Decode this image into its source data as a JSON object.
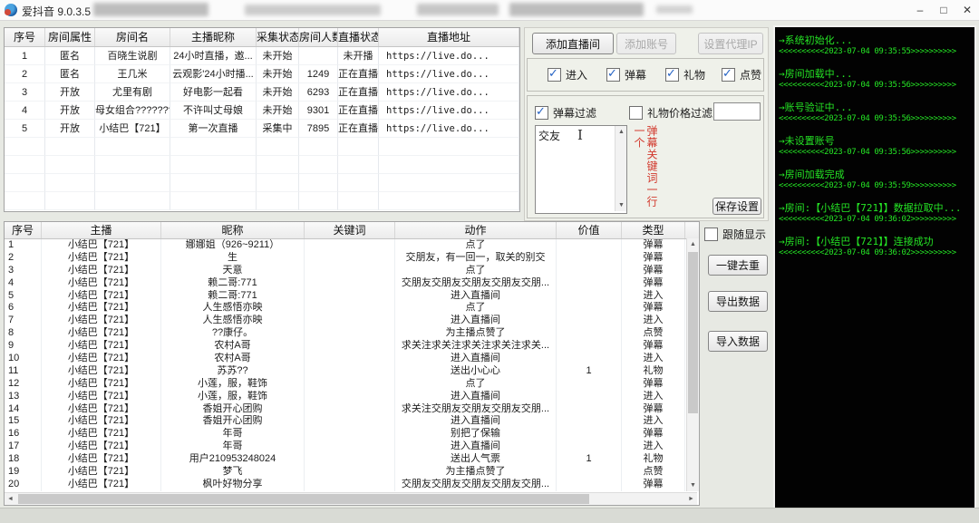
{
  "window": {
    "title": "爱抖音 9.0.3.5",
    "minimize": "–",
    "maximize": "□",
    "close": "✕"
  },
  "rooms_table": {
    "headers": [
      "序号",
      "房间属性",
      "房间名",
      "主播昵称",
      "采集状态",
      "房间人数",
      "直播状态",
      "直播地址"
    ],
    "rows": [
      [
        "1",
        "匿名",
        "百晓生说剧",
        "24小时直播，邀...",
        "未开始",
        "",
        "未开播",
        "https://live.do..."
      ],
      [
        "2",
        "匿名",
        "王几米",
        "云观影'24小时播...",
        "未开始",
        "1249",
        "正在直播",
        "https://live.do..."
      ],
      [
        "3",
        "开放",
        "尤里有剧",
        "好电影一起看",
        "未开始",
        "6293",
        "正在直播",
        "https://live.do..."
      ],
      [
        "4",
        "开放",
        "母女组合???????...",
        "不许叫丈母娘",
        "未开始",
        "9301",
        "正在直播",
        "https://live.do..."
      ],
      [
        "5",
        "开放",
        "小结巴【721】",
        "第一次直播",
        "采集中",
        "7895",
        "正在直播",
        "https://live.do..."
      ]
    ]
  },
  "controls": {
    "add_room_label": "添加直播间",
    "add_account_label": "添加账号",
    "set_proxy_label": "设置代理IP",
    "capture_options": [
      {
        "label": "进入",
        "checked": true
      },
      {
        "label": "弹幕",
        "checked": true
      },
      {
        "label": "礼物",
        "checked": true
      },
      {
        "label": "点赞",
        "checked": true
      }
    ],
    "danmaku_filter_label": "弹幕过滤",
    "danmaku_filter_checked": true,
    "gift_price_filter_label": "礼物价格过滤",
    "gift_price_filter_checked": false,
    "gift_price_value": "",
    "keywords_text": "交友",
    "keywords_hint": "弹幕关键词一行一个",
    "save_label": "保存设置"
  },
  "events_table": {
    "headers": [
      "序号",
      "主播",
      "昵称",
      "关键词",
      "动作",
      "价值",
      "类型"
    ],
    "rows": [
      [
        "1",
        "小结巴【721】",
        "娜娜姐（926~9211）",
        "",
        "点了",
        "",
        "弹幕"
      ],
      [
        "2",
        "小结巴【721】",
        "生",
        "",
        "交朋友，有一回一，取关的别交",
        "",
        "弹幕"
      ],
      [
        "3",
        "小结巴【721】",
        "天意",
        "",
        "点了",
        "",
        "弹幕"
      ],
      [
        "4",
        "小结巴【721】",
        "赖二哥:771",
        "",
        "交朋友交朋友交朋友交朋友交朋...",
        "",
        "弹幕"
      ],
      [
        "5",
        "小结巴【721】",
        "赖二哥:771",
        "",
        "进入直播间",
        "",
        "进入"
      ],
      [
        "6",
        "小结巴【721】",
        "人生感悟亦映",
        "",
        "点了",
        "",
        "弹幕"
      ],
      [
        "7",
        "小结巴【721】",
        "人生感悟亦映",
        "",
        "进入直播间",
        "",
        "进入"
      ],
      [
        "8",
        "小结巴【721】",
        "??康仔。",
        "",
        "为主播点赞了",
        "",
        "点赞"
      ],
      [
        "9",
        "小结巴【721】",
        "农村A哥",
        "",
        "求关注求关注求关注求关注求关...",
        "",
        "弹幕"
      ],
      [
        "10",
        "小结巴【721】",
        "农村A哥",
        "",
        "进入直播间",
        "",
        "进入"
      ],
      [
        "11",
        "小结巴【721】",
        "苏苏??",
        "",
        "送出小心心",
        "1",
        "礼物"
      ],
      [
        "12",
        "小结巴【721】",
        "小莲，服，鞋饰",
        "",
        "点了",
        "",
        "弹幕"
      ],
      [
        "13",
        "小结巴【721】",
        "小莲，服，鞋饰",
        "",
        "进入直播间",
        "",
        "进入"
      ],
      [
        "14",
        "小结巴【721】",
        "香姐开心团购",
        "",
        "求关注交朋友交朋友交朋友交朋...",
        "",
        "弹幕"
      ],
      [
        "15",
        "小结巴【721】",
        "香姐开心团购",
        "",
        "进入直播间",
        "",
        "进入"
      ],
      [
        "16",
        "小结巴【721】",
        "年哥",
        "",
        "别把了保输",
        "",
        "弹幕"
      ],
      [
        "17",
        "小结巴【721】",
        "年哥",
        "",
        "进入直播间",
        "",
        "进入"
      ],
      [
        "18",
        "小结巴【721】",
        "用户210953248024",
        "",
        "送出人气票",
        "1",
        "礼物"
      ],
      [
        "19",
        "小结巴【721】",
        "梦飞",
        "",
        "为主播点赞了",
        "",
        "点赞"
      ],
      [
        "20",
        "小结巴【721】",
        "枫叶好物分享",
        "",
        "交朋友交朋友交朋友交朋友交朋...",
        "",
        "弹幕"
      ]
    ]
  },
  "side_panel": {
    "follow_label": "跟随显示",
    "follow_checked": false,
    "dedupe_label": "一键去重",
    "export_label": "导出数据",
    "import_label": "导入数据"
  },
  "console": {
    "lines": [
      {
        "msg": "→系统初始化...",
        "time": "<<<<<<<<<<2023-07-04 09:35:55>>>>>>>>>>"
      },
      {
        "msg": "→房间加载中...",
        "time": "<<<<<<<<<<2023-07-04 09:35:56>>>>>>>>>>"
      },
      {
        "msg": "→账号验证中...",
        "time": "<<<<<<<<<<2023-07-04 09:35:56>>>>>>>>>>"
      },
      {
        "msg": "→未设置账号",
        "time": "<<<<<<<<<<2023-07-04 09:35:56>>>>>>>>>>"
      },
      {
        "msg": "→房间加载完成",
        "time": "<<<<<<<<<<2023-07-04 09:35:59>>>>>>>>>>"
      },
      {
        "msg": "→房间:【小结巴【721】】数据拉取中...",
        "time": "<<<<<<<<<<2023-07-04 09:36:02>>>>>>>>>>"
      },
      {
        "msg": "→房间:【小结巴【721】】连接成功",
        "time": "<<<<<<<<<<2023-07-04 09:36:02>>>>>>>>>>"
      }
    ]
  },
  "colors": {
    "console_green": "#25e425",
    "hint_red": "#d23a2e",
    "check_blue": "#2563c4"
  }
}
